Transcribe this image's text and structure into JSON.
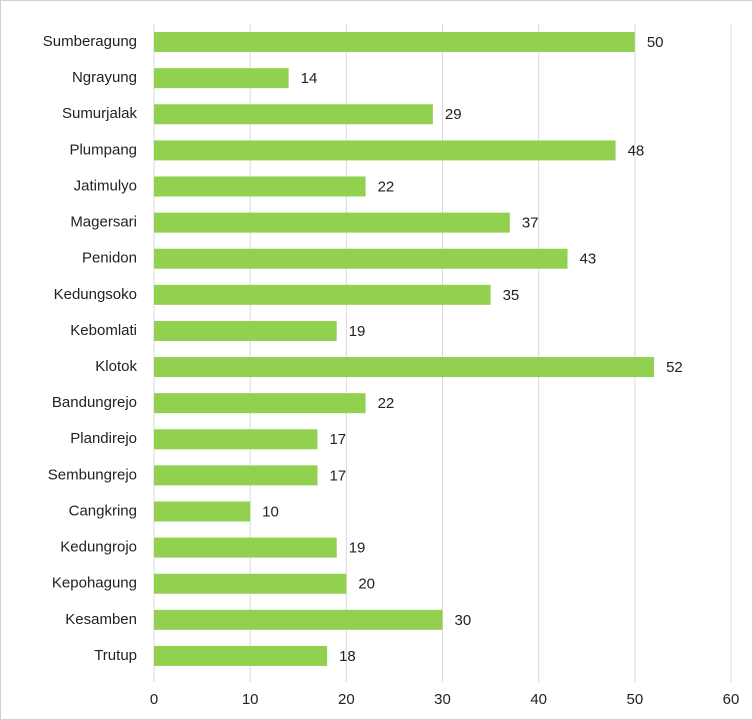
{
  "chart_data": {
    "type": "hbar",
    "categories": [
      "Sumberagung",
      "Ngrayung",
      "Sumurjalak",
      "Plumpang",
      "Jatimulyo",
      "Magersari",
      "Penidon",
      "Kedungsoko",
      "Kebomlati",
      "Klotok",
      "Bandungrejo",
      "Plandirejo",
      "Sembungrejo",
      "Cangkring",
      "Kedungrojo",
      "Kepohagung",
      "Kesamben",
      "Trutup"
    ],
    "values": [
      50,
      14,
      29,
      48,
      22,
      37,
      43,
      35,
      19,
      52,
      22,
      17,
      17,
      10,
      19,
      20,
      30,
      18
    ],
    "color": "#92d050",
    "xlim": [
      0,
      60
    ],
    "xticks": [
      0,
      10,
      20,
      30,
      40,
      50,
      60
    ],
    "grid": true
  }
}
